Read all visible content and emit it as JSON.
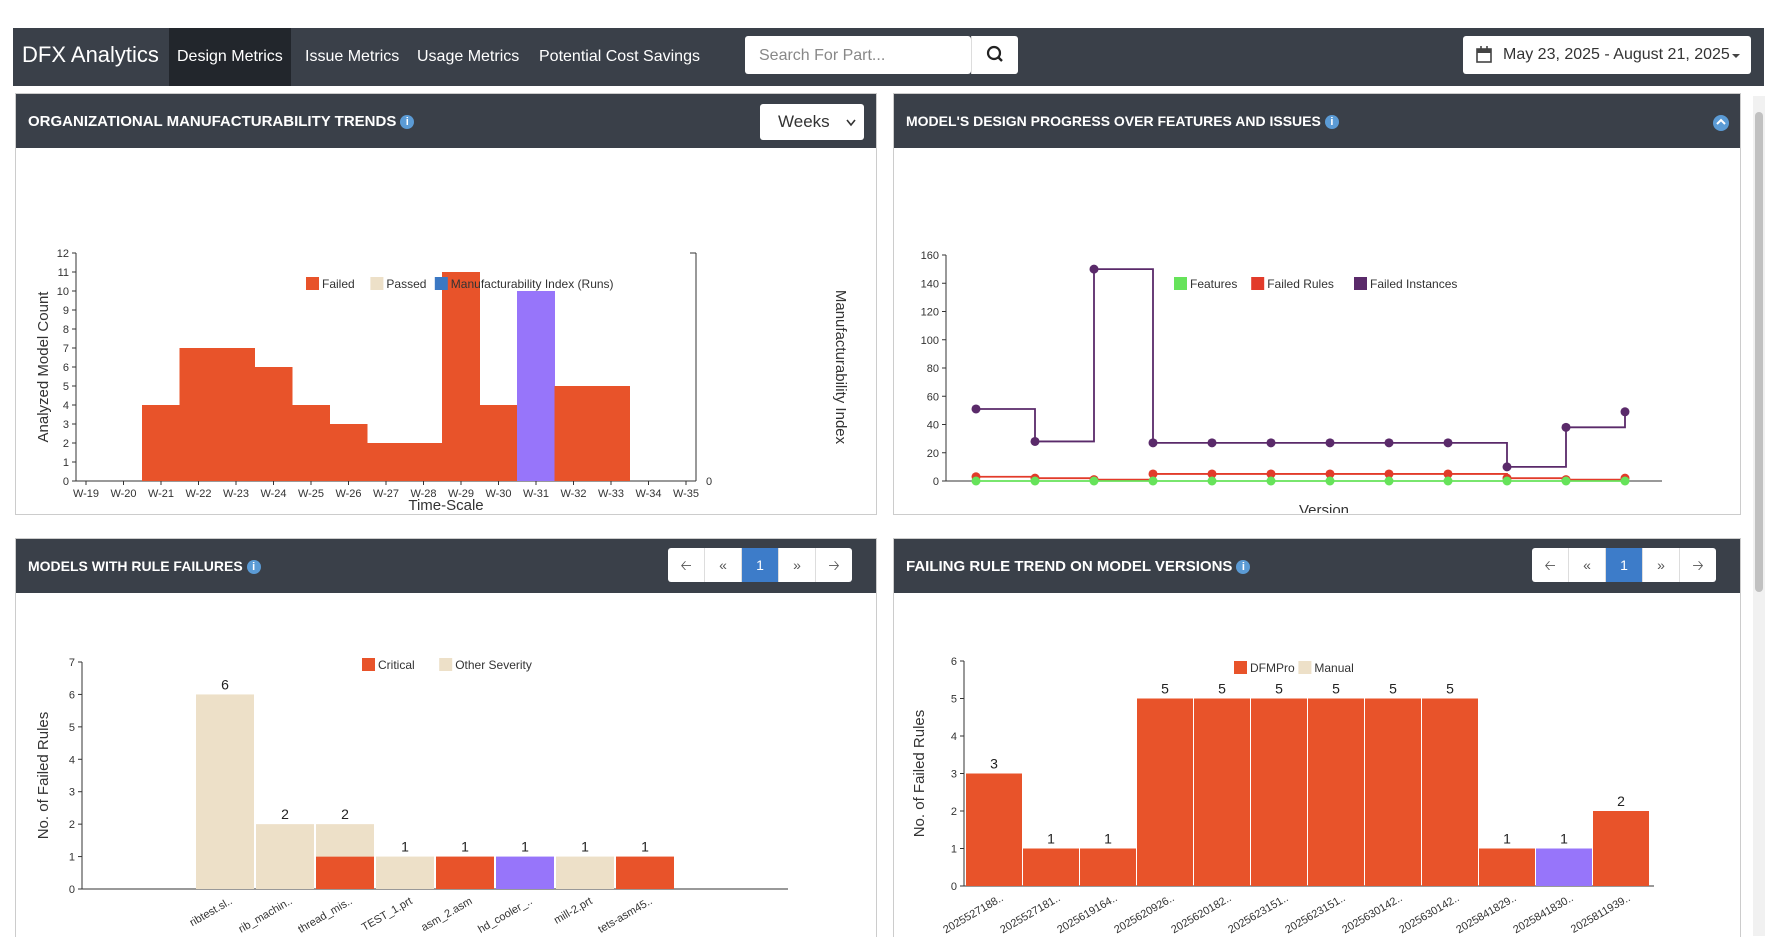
{
  "nav": {
    "brand": "DFX Analytics",
    "links": [
      "Design Metrics",
      "Issue Metrics",
      "Usage Metrics",
      "Potential Cost Savings"
    ],
    "search_placeholder": "Search For Part...",
    "date_range": "May 23, 2025 - August 21, 2025"
  },
  "panels": {
    "trends": {
      "title": "ORGANIZATIONAL MANUFACTURABILITY TRENDS",
      "select": "Weeks",
      "chart_data": {
        "type": "bar",
        "categories": [
          "W-19",
          "W-20",
          "W-21",
          "W-22",
          "W-23",
          "W-24",
          "W-25",
          "W-26",
          "W-27",
          "W-28",
          "W-29",
          "W-30",
          "W-31",
          "W-32",
          "W-33",
          "W-34",
          "W-35"
        ],
        "series": [
          {
            "name": "Failed",
            "values": [
              0,
              0,
              4,
              7,
              7,
              6,
              4,
              3,
              2,
              2,
              11,
              4,
              0,
              5,
              5,
              0,
              0
            ],
            "color": "#e8532a"
          },
          {
            "name": "Passed",
            "values": [
              0,
              0,
              0,
              0,
              0,
              0,
              0,
              0,
              0,
              0,
              0,
              0,
              0,
              0,
              0,
              0,
              0
            ],
            "color": "#ede0c8"
          },
          {
            "name": "Manufacturability Index (Runs)",
            "values": [
              0,
              0,
              0,
              0,
              0,
              0,
              0,
              0,
              0,
              0,
              0,
              0,
              10,
              0,
              0,
              0,
              0
            ],
            "color": "#3b78c3"
          }
        ],
        "highlight_color": "#9775fa",
        "ylabel": "Analyzed Model Count",
        "xlabel": "Time-Scale",
        "y2label": "Manufacturability Index",
        "ylim": [
          0,
          12
        ],
        "yticks": [
          "0",
          "1",
          "2",
          "3",
          "4",
          "5",
          "6",
          "7",
          "8",
          "9",
          "10",
          "11",
          "12"
        ],
        "y2tick": "0"
      }
    },
    "progress": {
      "title": "MODEL'S DESIGN PROGRESS OVER FEATURES AND ISSUES",
      "chart_data": {
        "type": "line",
        "xlabel": "Version",
        "legend": [
          "Features",
          "Failed Rules",
          "Failed Instances"
        ],
        "colors": [
          "#66e35a",
          "#e23b2a",
          "#5a2a6a"
        ],
        "ylim": [
          0,
          160
        ],
        "yticks": [
          "0",
          "20",
          "40",
          "60",
          "80",
          "100",
          "120",
          "140",
          "160"
        ],
        "series": [
          {
            "name": "Failed Instances",
            "values": [
              51,
              28,
              150,
              27,
              27,
              27,
              27,
              27,
              27,
              10,
              38,
              49
            ]
          },
          {
            "name": "Failed Rules",
            "values": [
              3,
              2,
              1,
              5,
              5,
              5,
              5,
              5,
              5,
              2,
              1,
              2
            ]
          },
          {
            "name": "Features",
            "values": [
              0,
              0,
              0,
              0,
              0,
              0,
              0,
              0,
              0,
              0,
              0,
              0
            ]
          }
        ]
      }
    },
    "failures": {
      "title": "MODELS WITH RULE FAILURES",
      "page": "1",
      "chart_data": {
        "type": "bar",
        "ylabel": "No. of Failed Rules",
        "legend": [
          "Critical",
          "Other Severity"
        ],
        "ylim": [
          0,
          7
        ],
        "yticks": [
          "0",
          "1",
          "2",
          "3",
          "4",
          "5",
          "6",
          "7"
        ],
        "categories": [
          "ribtest.sl..",
          "rib_machin..",
          "thread_mis..",
          "TEST_1.prt",
          "asm_2.asm",
          "hd_cooler_..",
          "mill-2.prt",
          "tets-asm45.."
        ],
        "critical": [
          0,
          0,
          1,
          0,
          1,
          0,
          0,
          1
        ],
        "other": [
          6,
          2,
          1,
          1,
          0,
          0,
          1,
          0
        ],
        "highlight": [
          0,
          0,
          0,
          0,
          0,
          1,
          0,
          0
        ],
        "labels": [
          "6",
          "2",
          "2",
          "1",
          "1",
          "1",
          "1",
          "1"
        ]
      }
    },
    "failing_trend": {
      "title": "FAILING RULE TREND ON MODEL VERSIONS",
      "page": "1",
      "chart_data": {
        "type": "bar",
        "ylabel": "No. of Failed Rules",
        "legend": [
          "DFMPro",
          "Manual"
        ],
        "ylim": [
          0,
          6
        ],
        "yticks": [
          "0",
          "1",
          "2",
          "3",
          "4",
          "5",
          "6"
        ],
        "categories": [
          "2025527188..",
          "2025527181..",
          "2025619164..",
          "2025620926..",
          "2025620182..",
          "2025623151..",
          "2025623151..",
          "2025630142..",
          "2025630142..",
          "2025841829..",
          "2025841830..",
          "2025811939.."
        ],
        "values": [
          3,
          1,
          1,
          5,
          5,
          5,
          5,
          5,
          5,
          1,
          1,
          2
        ],
        "highlight": [
          0,
          0,
          0,
          0,
          0,
          0,
          0,
          0,
          0,
          0,
          1,
          0
        ],
        "labels": [
          "3",
          "1",
          "1",
          "5",
          "5",
          "5",
          "5",
          "5",
          "5",
          "1",
          "1",
          "2"
        ]
      }
    }
  }
}
